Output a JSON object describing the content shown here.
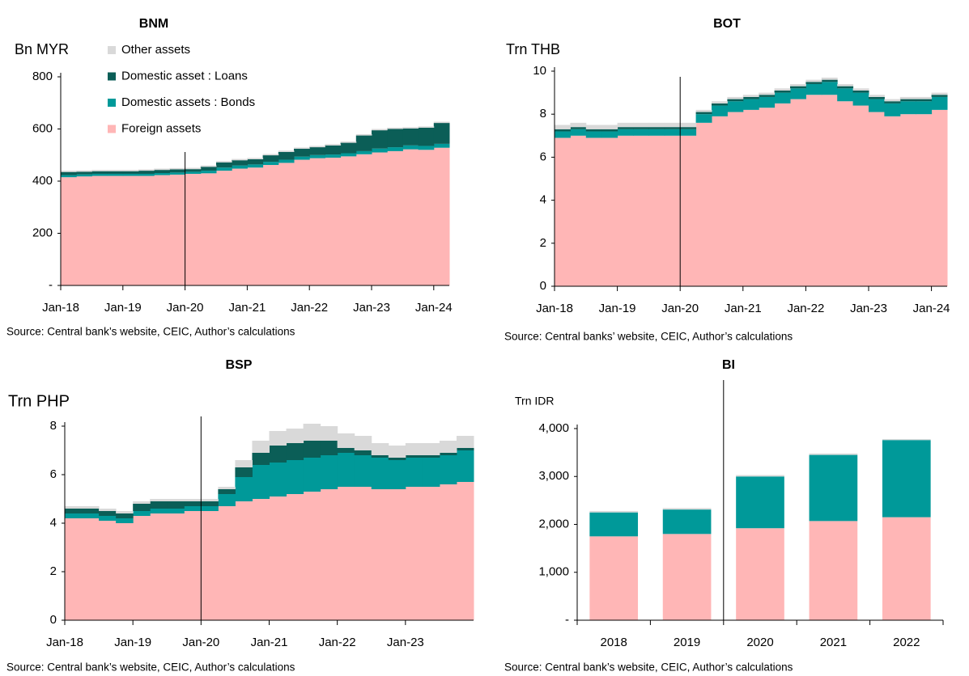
{
  "chart_data": [
    {
      "type": "stacked_area",
      "title": "BNM",
      "y_label": "Bn MYR",
      "source": "Source: Central bank’s website, CEIC, Author’s calculations",
      "categories": [
        "Jan-18",
        null,
        null,
        null,
        "Jan-19",
        null,
        null,
        null,
        "Jan-20",
        null,
        null,
        null,
        "Jan-21",
        null,
        null,
        null,
        "Jan-22",
        null,
        null,
        null,
        "Jan-23",
        null,
        null,
        null,
        "Jan-24"
      ],
      "series": [
        {
          "name": "Foreign assets",
          "color": "#ffb6b6",
          "values": [
            415,
            418,
            420,
            420,
            420,
            420,
            423,
            425,
            428,
            430,
            440,
            448,
            452,
            462,
            470,
            482,
            488,
            490,
            495,
            503,
            510,
            515,
            522,
            520,
            528
          ]
        },
        {
          "name": "Domestic assets : Bonds",
          "color": "#009999",
          "values": [
            8,
            8,
            8,
            8,
            8,
            8,
            8,
            8,
            8,
            10,
            12,
            12,
            12,
            12,
            12,
            12,
            12,
            12,
            12,
            12,
            15,
            15,
            15,
            15,
            15
          ]
        },
        {
          "name": "Domestic asset : Loans",
          "color": "#0b5e57",
          "values": [
            12,
            10,
            10,
            10,
            10,
            12,
            12,
            12,
            10,
            15,
            20,
            20,
            20,
            25,
            30,
            30,
            30,
            35,
            40,
            60,
            70,
            70,
            65,
            70,
            80
          ]
        },
        {
          "name": "Other assets",
          "color": "#d9d9d9",
          "values": [
            5,
            5,
            5,
            5,
            5,
            5,
            5,
            5,
            5,
            5,
            5,
            5,
            5,
            5,
            5,
            5,
            5,
            5,
            5,
            5,
            5,
            5,
            5,
            5,
            5
          ]
        }
      ],
      "ylim": [
        0,
        800
      ],
      "yticks": [
        {
          "value": 0,
          "label": "-"
        },
        200,
        400,
        600,
        800
      ],
      "legend": "top-left"
    },
    {
      "type": "stacked_area",
      "title": "BOT",
      "y_label": "Trn THB",
      "source": "Source: Central banks’ website, CEIC, Author’s calculations",
      "categories": [
        "Jan-18",
        null,
        null,
        null,
        "Jan-19",
        null,
        null,
        null,
        "Jan-20",
        null,
        null,
        null,
        "Jan-21",
        null,
        null,
        null,
        "Jan-22",
        null,
        null,
        null,
        "Jan-23",
        null,
        null,
        null,
        "Jan-24"
      ],
      "series": [
        {
          "color": "#ffb6b6",
          "values": [
            6.9,
            7.0,
            6.9,
            6.9,
            7.0,
            7.0,
            7.0,
            7.0,
            7.0,
            7.6,
            7.9,
            8.1,
            8.2,
            8.3,
            8.5,
            8.7,
            8.9,
            8.9,
            8.6,
            8.4,
            8.1,
            7.9,
            8.0,
            8.0,
            8.2
          ]
        },
        {
          "color": "#009999",
          "values": [
            0.3,
            0.3,
            0.3,
            0.3,
            0.3,
            0.3,
            0.3,
            0.3,
            0.3,
            0.4,
            0.5,
            0.5,
            0.5,
            0.5,
            0.5,
            0.5,
            0.5,
            0.6,
            0.6,
            0.6,
            0.6,
            0.6,
            0.6,
            0.6,
            0.6
          ]
        },
        {
          "color": "#0b5e57",
          "values": [
            0.1,
            0.1,
            0.1,
            0.1,
            0.1,
            0.1,
            0.1,
            0.1,
            0.1,
            0.1,
            0.1,
            0.1,
            0.1,
            0.1,
            0.1,
            0.1,
            0.1,
            0.1,
            0.1,
            0.1,
            0.1,
            0.1,
            0.1,
            0.1,
            0.1
          ]
        },
        {
          "color": "#d9d9d9",
          "values": [
            0.2,
            0.2,
            0.2,
            0.2,
            0.2,
            0.2,
            0.2,
            0.2,
            0.2,
            0.1,
            0.1,
            0.1,
            0.1,
            0.1,
            0.1,
            0.1,
            0.1,
            0.1,
            0.1,
            0.1,
            0.1,
            0.1,
            0.1,
            0.1,
            0.1
          ]
        }
      ],
      "ylim": [
        0,
        10
      ],
      "yticks": [
        0,
        2,
        4,
        6,
        8,
        10
      ]
    },
    {
      "type": "stacked_area",
      "title": "BSP",
      "y_label": "Trn PHP",
      "source": "Source: Central bank’s website, CEIC, Author’s calculations",
      "categories": [
        "Jan-18",
        null,
        null,
        null,
        "Jan-19",
        null,
        null,
        null,
        "Jan-20",
        null,
        null,
        null,
        "Jan-21",
        null,
        null,
        null,
        "Jan-22",
        null,
        null,
        null,
        "Jan-23",
        null,
        null,
        null
      ],
      "series": [
        {
          "color": "#ffb6b6",
          "values": [
            4.2,
            4.2,
            4.1,
            4.0,
            4.3,
            4.4,
            4.4,
            4.5,
            4.5,
            4.7,
            4.9,
            5.0,
            5.1,
            5.2,
            5.3,
            5.4,
            5.5,
            5.5,
            5.4,
            5.4,
            5.5,
            5.5,
            5.6,
            5.7
          ]
        },
        {
          "color": "#009999",
          "values": [
            0.2,
            0.2,
            0.2,
            0.2,
            0.2,
            0.2,
            0.2,
            0.2,
            0.2,
            0.5,
            1.0,
            1.4,
            1.4,
            1.4,
            1.4,
            1.4,
            1.4,
            1.3,
            1.3,
            1.2,
            1.2,
            1.2,
            1.2,
            1.3
          ]
        },
        {
          "color": "#0b5e57",
          "values": [
            0.2,
            0.2,
            0.2,
            0.2,
            0.3,
            0.3,
            0.3,
            0.2,
            0.2,
            0.2,
            0.4,
            0.5,
            0.7,
            0.7,
            0.7,
            0.6,
            0.2,
            0.2,
            0.1,
            0.1,
            0.1,
            0.1,
            0.1,
            0.1
          ]
        },
        {
          "color": "#d9d9d9",
          "values": [
            0.1,
            0.1,
            0.1,
            0.1,
            0.1,
            0.1,
            0.1,
            0.1,
            0.1,
            0.1,
            0.3,
            0.5,
            0.6,
            0.6,
            0.7,
            0.6,
            0.6,
            0.6,
            0.5,
            0.5,
            0.5,
            0.5,
            0.5,
            0.5
          ]
        }
      ],
      "ylim": [
        0,
        8
      ],
      "yticks": [
        0,
        2,
        4,
        6,
        8
      ]
    },
    {
      "type": "stacked_bar",
      "title": "BI",
      "y_label": "Trn IDR",
      "source": "Source: Central bank’s website, CEIC, Author’s calculations",
      "categories": [
        "2018",
        "2019",
        "2020",
        "2021",
        "2022"
      ],
      "series": [
        {
          "color": "#ffb6b6",
          "values": [
            1750,
            1800,
            1920,
            2070,
            2150
          ]
        },
        {
          "color": "#009999",
          "values": [
            500,
            510,
            1080,
            1380,
            1610
          ]
        },
        {
          "color": "#d9d9d9",
          "values": [
            30,
            30,
            30,
            30,
            20
          ]
        }
      ],
      "ylim": [
        0,
        4000
      ],
      "yticks": [
        {
          "value": 0,
          "label": "-"
        },
        {
          "value": 1000,
          "label": "1,000"
        },
        {
          "value": 2000,
          "label": "2,000"
        },
        {
          "value": 3000,
          "label": "3,000"
        },
        {
          "value": 4000,
          "label": "4,000"
        }
      ]
    }
  ]
}
